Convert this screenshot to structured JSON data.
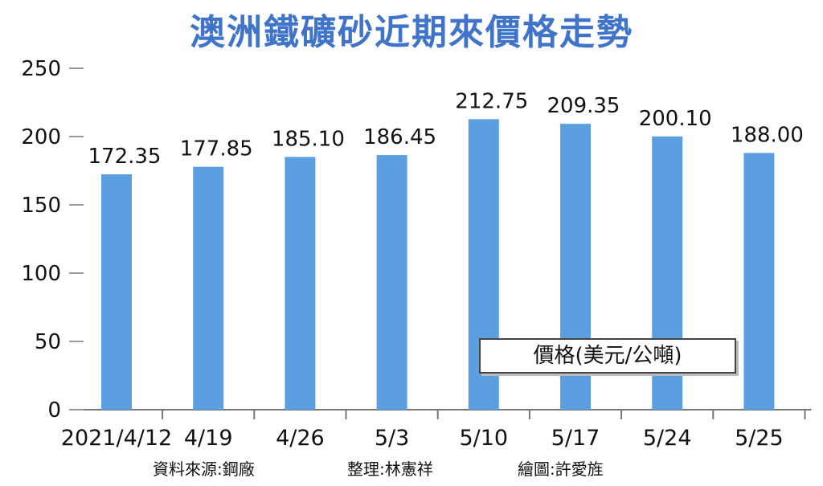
{
  "chart_data": {
    "type": "bar",
    "title": "澳洲鐵礦砂近期來價格走勢",
    "categories": [
      "2021/4/12",
      "4/19",
      "4/26",
      "5/3",
      "5/10",
      "5/17",
      "5/24",
      "5/25"
    ],
    "values": [
      172.35,
      177.85,
      185.1,
      186.45,
      212.75,
      209.35,
      200.1,
      188.0
    ],
    "value_labels": [
      "172.35",
      "177.85",
      "185.10",
      "186.45",
      "212.75",
      "209.35",
      "200.10",
      "188.00"
    ],
    "series": [
      {
        "name": "價格(美元/公噸)",
        "values": [
          172.35,
          177.85,
          185.1,
          186.45,
          212.75,
          209.35,
          200.1,
          188.0
        ]
      }
    ],
    "ylim": [
      0,
      250
    ],
    "yticks": [
      0,
      50,
      100,
      150,
      200,
      250
    ],
    "grid": false,
    "legend_position": "bottom-right",
    "bar_color": "#5b9fe0"
  },
  "footer": {
    "source": "資料來源:鋼廠",
    "editor": "整理:林憲祥",
    "illustrator": "繪圖:許愛旌"
  }
}
